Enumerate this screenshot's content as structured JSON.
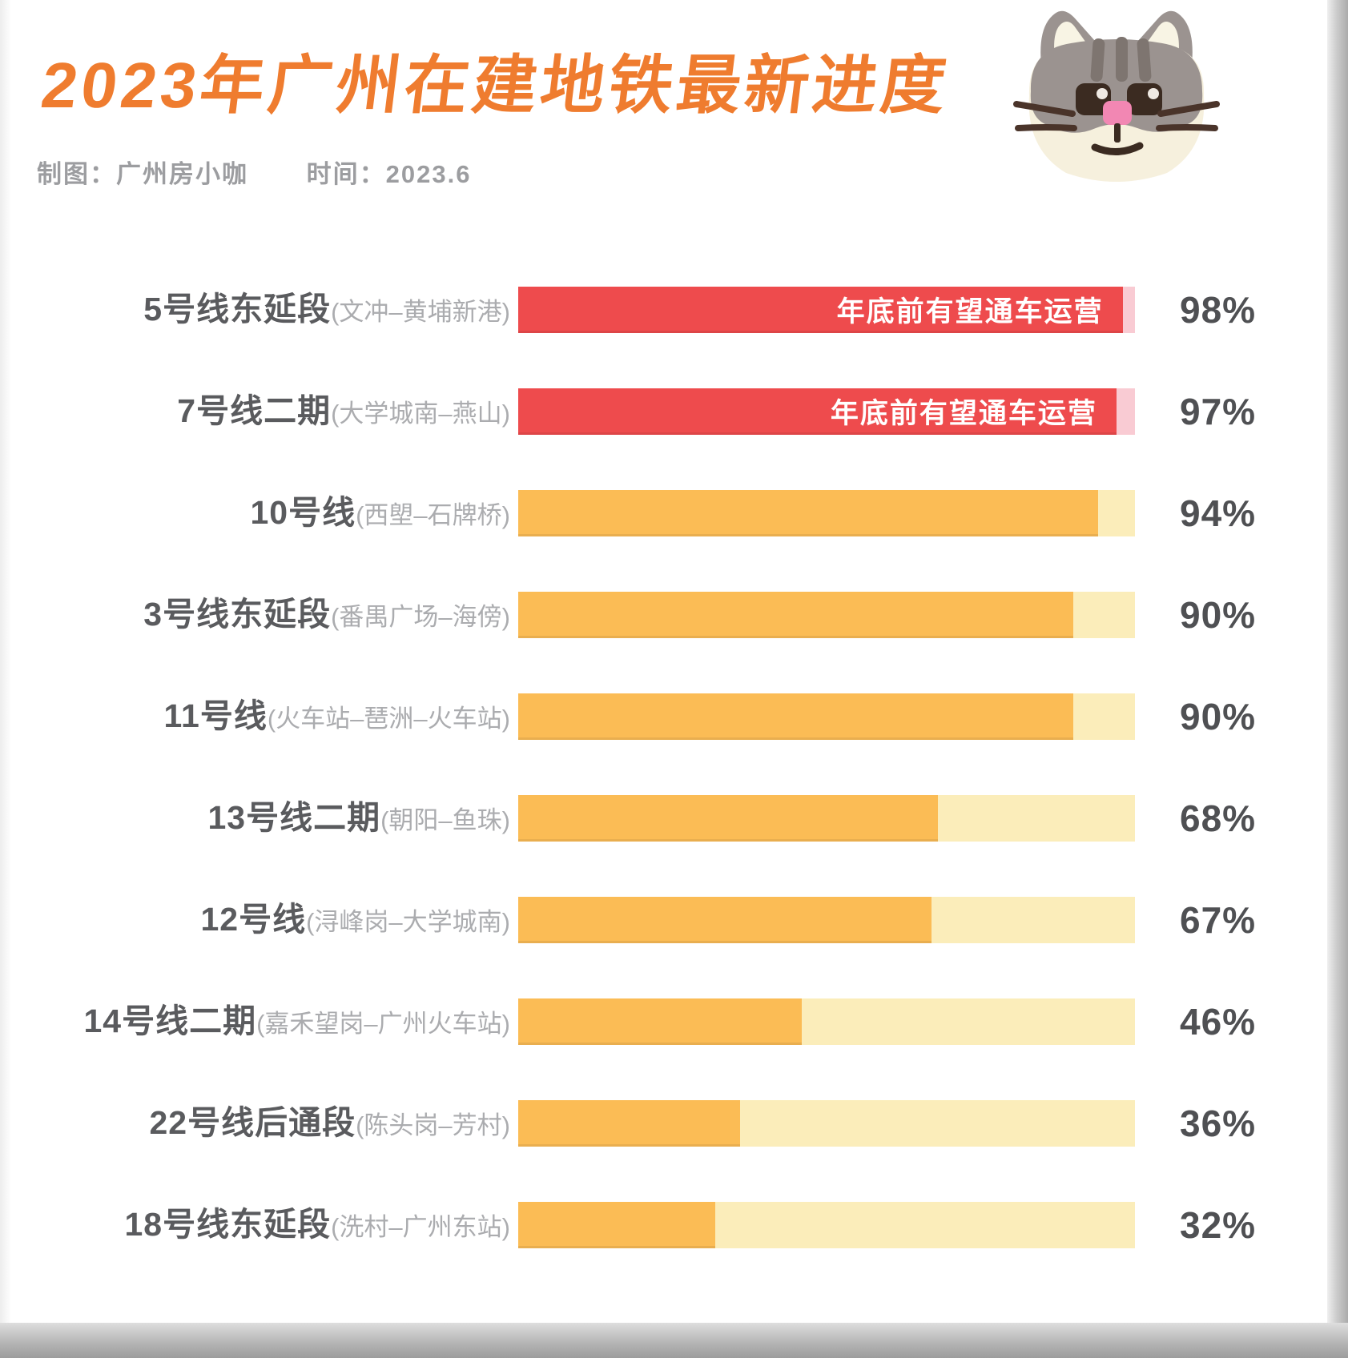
{
  "header": {
    "title": "2023年广州在建地铁最新进度",
    "credit": "制图：广州房小咖",
    "date": "时间：2023.6"
  },
  "colors": {
    "title_orange": "#EF7C2F",
    "meta_gray": "#9C9DA0",
    "label_dark": "#5A5B5E",
    "label_light": "#ABACAF",
    "percent_text": "#4F5053",
    "bar_styles": {
      "red": {
        "fill": "#EE4B4D",
        "track": "#F9CBD3"
      },
      "orange": {
        "fill": "#FBBC55",
        "track": "#FBEDBA"
      }
    }
  },
  "icons": {
    "cat": "cat-illustration"
  },
  "chart_data": {
    "type": "bar",
    "orientation": "horizontal",
    "title": "2023年广州在建地铁最新进度",
    "unit": "%",
    "xlim": [
      0,
      100
    ],
    "grid": false,
    "legend": "none",
    "categories": [
      "5号线东延段",
      "7号线二期",
      "10号线",
      "3号线东延段",
      "11号线",
      "13号线二期",
      "12号线",
      "14号线二期",
      "22号线后通段",
      "18号线东延段"
    ],
    "values": [
      98,
      97,
      94,
      90,
      90,
      68,
      67,
      46,
      36,
      32
    ],
    "rows": [
      {
        "label": "5号线东延段",
        "sublabel": "(文冲–黄埔新港)",
        "value": 98,
        "value_text": "98%",
        "annotation": "年底前有望通车运营",
        "style": "red"
      },
      {
        "label": "7号线二期",
        "sublabel": "(大学城南–燕山)",
        "value": 97,
        "value_text": "97%",
        "annotation": "年底前有望通车运营",
        "style": "red"
      },
      {
        "label": "10号线",
        "sublabel": "(西塱–石牌桥)",
        "value": 94,
        "value_text": "94%",
        "annotation": "",
        "style": "orange"
      },
      {
        "label": "3号线东延段",
        "sublabel": "(番禺广场–海傍)",
        "value": 90,
        "value_text": "90%",
        "annotation": "",
        "style": "orange"
      },
      {
        "label": "11号线",
        "sublabel": "(火车站–琶洲–火车站)",
        "value": 90,
        "value_text": "90%",
        "annotation": "",
        "style": "orange"
      },
      {
        "label": "13号线二期",
        "sublabel": "(朝阳–鱼珠)",
        "value": 68,
        "value_text": "68%",
        "annotation": "",
        "style": "orange"
      },
      {
        "label": "12号线",
        "sublabel": "(浔峰岗–大学城南)",
        "value": 67,
        "value_text": "67%",
        "annotation": "",
        "style": "orange"
      },
      {
        "label": "14号线二期",
        "sublabel": "(嘉禾望岗–广州火车站)",
        "value": 46,
        "value_text": "46%",
        "annotation": "",
        "style": "orange"
      },
      {
        "label": "22号线后通段",
        "sublabel": "(陈头岗–芳村)",
        "value": 36,
        "value_text": "36%",
        "annotation": "",
        "style": "orange"
      },
      {
        "label": "18号线东延段",
        "sublabel": "(洗村–广州东站)",
        "value": 32,
        "value_text": "32%",
        "annotation": "",
        "style": "orange"
      }
    ]
  }
}
